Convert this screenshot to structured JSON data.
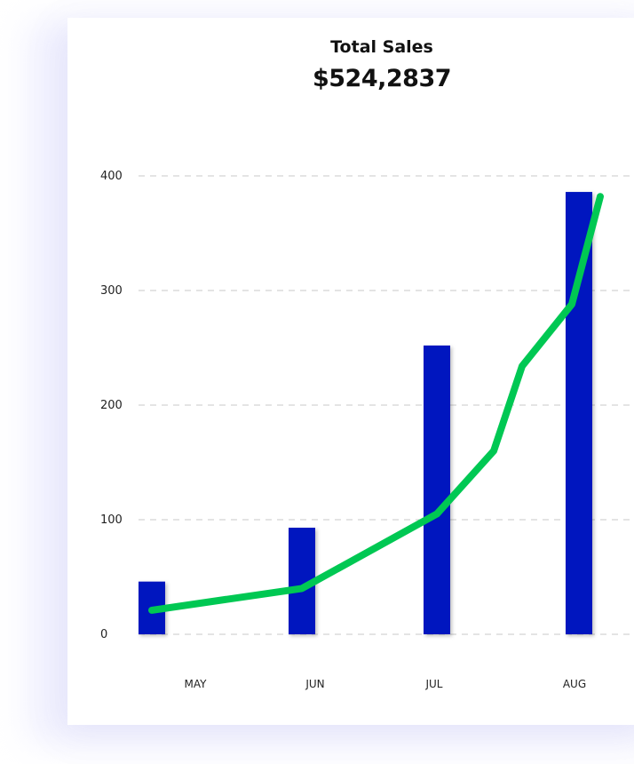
{
  "header": {
    "title": "Total Sales",
    "total": "$524,2837"
  },
  "colors": {
    "bar": "#0417bf",
    "line": "#00c853",
    "grid": "#c9c9c9"
  },
  "chart_data": {
    "type": "bar",
    "title": "Total Sales",
    "categories": [
      "MAY",
      "JUN",
      "JUL",
      "AUG"
    ],
    "y_ticks": [
      0,
      100,
      200,
      300,
      400
    ],
    "ylim": [
      0,
      400
    ],
    "grid": true,
    "series": [
      {
        "type": "bar",
        "values": [
          46,
          93,
          252,
          386
        ]
      },
      {
        "type": "line",
        "points": [
          {
            "x": 0,
            "y": 21
          },
          {
            "x": 1,
            "y": 40
          },
          {
            "x": 2,
            "y": 105
          },
          {
            "x": 2.4,
            "y": 160
          },
          {
            "x": 2.6,
            "y": 234
          },
          {
            "x": 2.95,
            "y": 288
          },
          {
            "x": 3.15,
            "y": 382
          }
        ]
      }
    ]
  }
}
